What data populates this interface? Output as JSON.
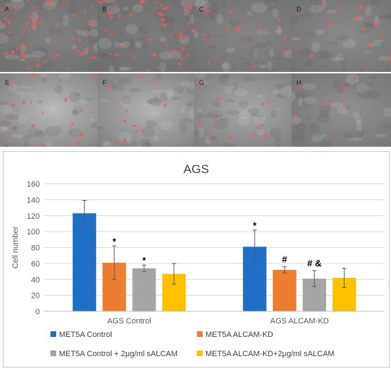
{
  "panels": [
    {
      "label": "A",
      "tone": "#808080",
      "density": 70
    },
    {
      "label": "B",
      "tone": "#7c7c7c",
      "density": 55
    },
    {
      "label": "C",
      "tone": "#858585",
      "density": 25
    },
    {
      "label": "D",
      "tone": "#8a8a8a",
      "density": 22
    },
    {
      "label": "E",
      "tone": "#b8b8b8",
      "density": 22
    },
    {
      "label": "F",
      "tone": "#b2b2b2",
      "density": 14
    },
    {
      "label": "G",
      "tone": "#a8a8a8",
      "density": 16
    },
    {
      "label": "H",
      "tone": "#8f8f8f",
      "density": 12
    }
  ],
  "chart_data": {
    "type": "bar",
    "title": "AGS",
    "ylabel": "Cell number",
    "xlabel": "",
    "ylim": [
      0,
      160
    ],
    "yticks": [
      0,
      20,
      40,
      60,
      80,
      100,
      120,
      140,
      160
    ],
    "grid": true,
    "legend_position": "bottom",
    "categories": [
      "AGS Control",
      "AGS ALCAM-KD"
    ],
    "series": [
      {
        "name": "MET5A Control",
        "color": "#1f6fc6",
        "values": [
          123,
          81
        ],
        "errors": [
          16,
          21
        ],
        "annotations": [
          "",
          "*"
        ]
      },
      {
        "name": "MET5A ALCAM-KD",
        "color": "#ed7d31",
        "values": [
          61,
          52
        ],
        "errors": [
          21,
          4
        ],
        "annotations": [
          "*",
          "#"
        ]
      },
      {
        "name": "MET5A Control + 2μg/ml sALCAM",
        "color": "#a5a5a5",
        "values": [
          54,
          41
        ],
        "errors": [
          4,
          10
        ],
        "annotations": [
          "*",
          "# &"
        ]
      },
      {
        "name": "MET5A ALCAM-KD+2μg/ml sALCAM",
        "color": "#ffc000",
        "values": [
          47,
          42
        ],
        "errors": [
          13,
          12
        ],
        "annotations": [
          "",
          ""
        ]
      }
    ]
  }
}
